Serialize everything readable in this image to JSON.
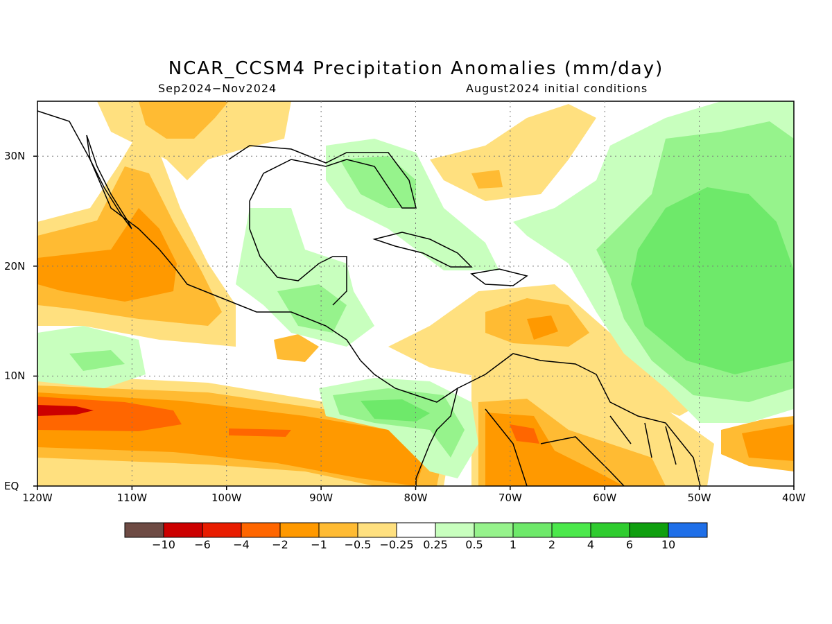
{
  "header": {
    "title": "NCAR_CCSM4 Precipitation Anomalies (mm/day)",
    "subtitle_left": "Sep2024−Nov2024",
    "subtitle_right": "August2024 initial conditions"
  },
  "axes": {
    "x_ticks": [
      "120W",
      "110W",
      "100W",
      "90W",
      "80W",
      "70W",
      "60W",
      "50W",
      "40W"
    ],
    "y_ticks": [
      "EQ",
      "10N",
      "20N",
      "30N"
    ],
    "lon_range": [
      -120,
      -40
    ],
    "lat_range": [
      0,
      35
    ]
  },
  "colorbar": {
    "colors": [
      "#6e4b44",
      "#cc0000",
      "#e81c00",
      "#ff6600",
      "#ff9900",
      "#ffbb33",
      "#ffe07f",
      "#ffffff",
      "#c8ffbe",
      "#96f38c",
      "#6ee96a",
      "#4be84b",
      "#2fcc2f",
      "#0f9f0f",
      "#1f6fe8"
    ],
    "labels": [
      "−10",
      "−6",
      "−4",
      "−2",
      "−1",
      "−0.5",
      "−0.25",
      "0.25",
      "0.5",
      "1",
      "2",
      "4",
      "6",
      "10"
    ]
  },
  "anomaly_colors": {
    "strong_dry": "#e81c00",
    "dry_2": "#ff6600",
    "dry_1": "#ff9900",
    "dry_05": "#ffbb33",
    "dry_025": "#ffe07f",
    "wet_025": "#c8ffbe",
    "wet_05": "#96f38c",
    "wet_1": "#6ee96a",
    "wet_2": "#4be84b"
  }
}
